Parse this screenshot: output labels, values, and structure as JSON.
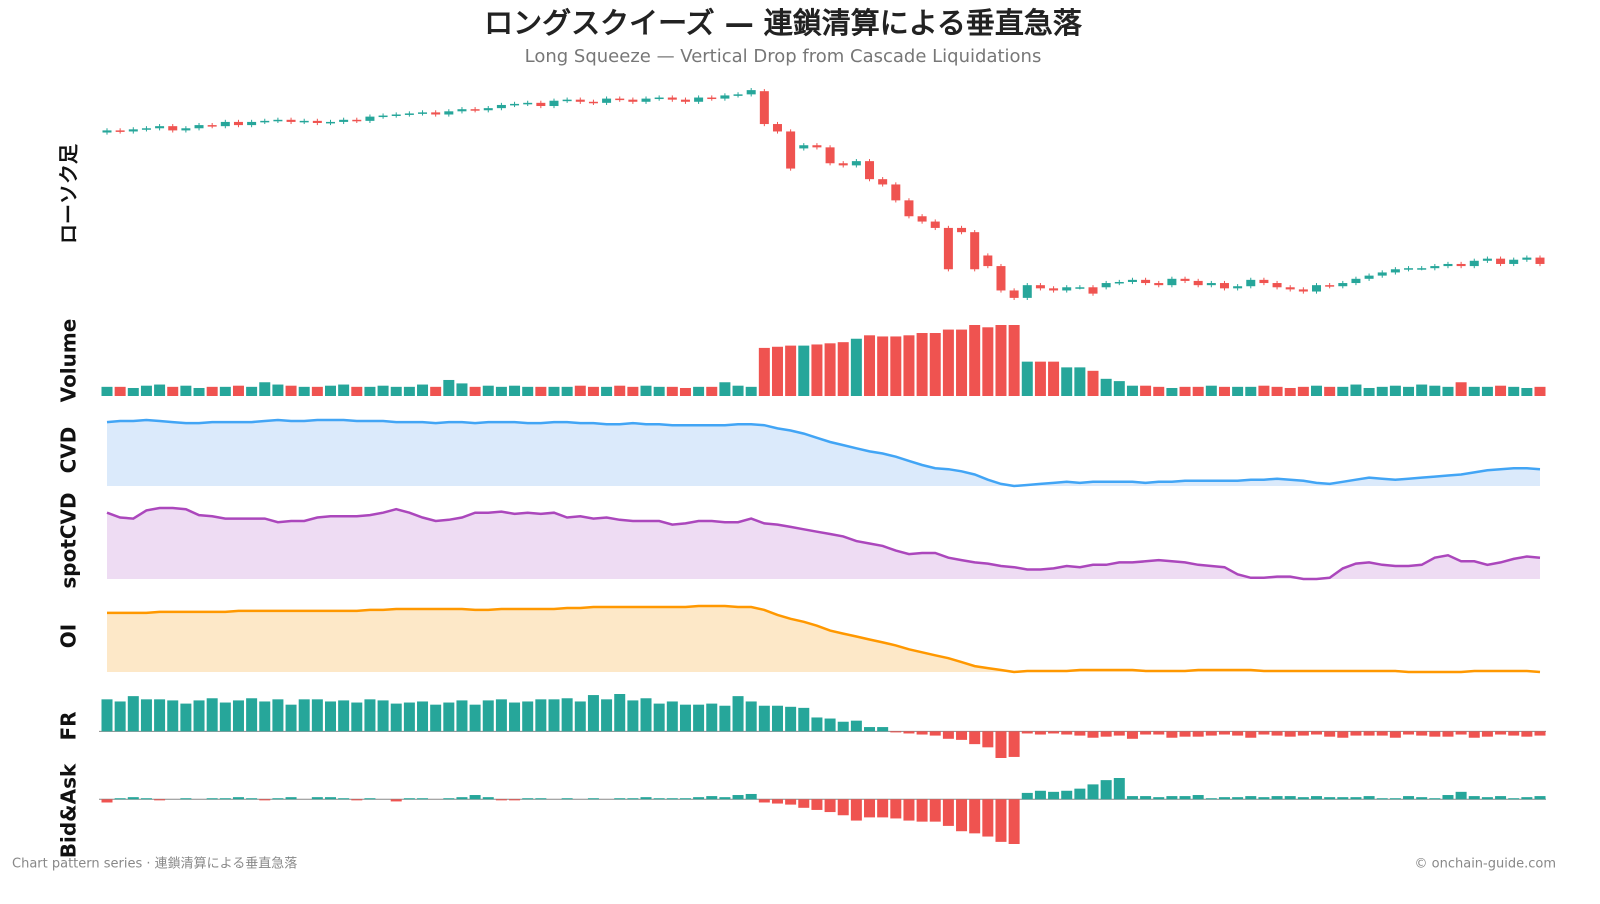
{
  "header": {
    "title": "ロングスクイーズ — 連鎖清算による垂直急落",
    "subtitle": "Long Squeeze — Vertical Drop from Cascade Liquidations"
  },
  "footer": {
    "left": "Chart pattern series · 連鎖清算による垂直急落",
    "right": "© onchain-guide.com"
  },
  "chart_data": [
    {
      "type": "candlestick",
      "ylabel": "ローソク足",
      "up_color": "#26a69a",
      "down_color": "#ef5350",
      "open": [
        164,
        166,
        165,
        167,
        168,
        170,
        166,
        168,
        171,
        170,
        174,
        171,
        174,
        175,
        176,
        174,
        175,
        173,
        174,
        176,
        175,
        179,
        180,
        181,
        182,
        183,
        181,
        184,
        186,
        185,
        187,
        190,
        191,
        192,
        189,
        194,
        195,
        193,
        192,
        196,
        195,
        193,
        196,
        197,
        195,
        193,
        197,
        196,
        199,
        200,
        203,
        172,
        165,
        149,
        152,
        150,
        135,
        133,
        137,
        120,
        115,
        100,
        85,
        80,
        74,
        74,
        70,
        48,
        38,
        15,
        8,
        20,
        17,
        15,
        18,
        18,
        18,
        22,
        23,
        25,
        22,
        20,
        26,
        24,
        20,
        22,
        17,
        19,
        25,
        22,
        18,
        16,
        14,
        20,
        19,
        22,
        26,
        29,
        32,
        35,
        36,
        36,
        38,
        40,
        38,
        43,
        45,
        40,
        44,
        46
      ],
      "high": [
        168,
        168,
        169,
        170,
        172,
        172,
        170,
        173,
        173,
        176,
        176,
        176,
        177,
        178,
        178,
        177,
        177,
        176,
        178,
        178,
        181,
        182,
        183,
        184,
        185,
        185,
        186,
        188,
        188,
        189,
        192,
        193,
        194,
        194,
        196,
        197,
        197,
        195,
        198,
        198,
        197,
        198,
        199,
        199,
        197,
        199,
        199,
        201,
        202,
        206,
        205,
        174,
        167,
        154,
        154,
        152,
        137,
        139,
        139,
        122,
        117,
        102,
        87,
        82,
        76,
        76,
        72,
        50,
        40,
        17,
        22,
        22,
        19,
        20,
        20,
        20,
        24,
        25,
        27,
        27,
        24,
        28,
        28,
        26,
        24,
        24,
        21,
        27,
        27,
        24,
        20,
        18,
        22,
        22,
        24,
        28,
        31,
        34,
        37,
        38,
        38,
        40,
        42,
        42,
        45,
        47,
        47,
        46,
        48,
        48
      ],
      "low": [
        162,
        163,
        163,
        165,
        166,
        164,
        164,
        166,
        168,
        168,
        169,
        169,
        172,
        173,
        172,
        172,
        171,
        171,
        172,
        173,
        173,
        177,
        178,
        179,
        180,
        179,
        179,
        182,
        183,
        183,
        185,
        188,
        189,
        187,
        187,
        192,
        191,
        190,
        190,
        193,
        191,
        191,
        194,
        193,
        191,
        191,
        194,
        194,
        197,
        198,
        170,
        163,
        128,
        147,
        148,
        133,
        131,
        131,
        118,
        113,
        98,
        83,
        78,
        72,
        33,
        68,
        33,
        36,
        13,
        6,
        6,
        15,
        13,
        13,
        16,
        10,
        16,
        20,
        21,
        20,
        18,
        18,
        22,
        18,
        18,
        15,
        15,
        17,
        20,
        16,
        14,
        12,
        12,
        17,
        17,
        20,
        24,
        27,
        30,
        33,
        34,
        34,
        36,
        36,
        36,
        41,
        38,
        38,
        42,
        38
      ],
      "close": [
        166,
        165,
        167,
        168,
        170,
        166,
        168,
        171,
        170,
        174,
        171,
        174,
        175,
        176,
        174,
        175,
        173,
        174,
        176,
        175,
        179,
        180,
        181,
        182,
        183,
        181,
        184,
        186,
        185,
        187,
        190,
        191,
        192,
        189,
        194,
        195,
        193,
        192,
        196,
        195,
        193,
        196,
        197,
        195,
        193,
        197,
        196,
        199,
        200,
        204,
        172,
        165,
        130,
        152,
        150,
        135,
        133,
        137,
        120,
        115,
        100,
        85,
        80,
        74,
        35,
        70,
        35,
        38,
        15,
        8,
        20,
        17,
        15,
        18,
        18,
        12,
        22,
        23,
        25,
        22,
        20,
        26,
        24,
        20,
        22,
        17,
        19,
        25,
        22,
        18,
        16,
        14,
        20,
        19,
        22,
        26,
        29,
        32,
        35,
        36,
        36,
        38,
        40,
        38,
        43,
        45,
        40,
        44,
        46,
        40
      ]
    },
    {
      "type": "bar",
      "ylabel": "Volume",
      "up_color": "#26a69a",
      "down_color": "#ef5350",
      "values": [
        8,
        8,
        7,
        9,
        10,
        8,
        9,
        7,
        8,
        8,
        9,
        8,
        12,
        10,
        9,
        8,
        8,
        9,
        10,
        8,
        8,
        9,
        8,
        8,
        10,
        8,
        14,
        11,
        8,
        9,
        8,
        9,
        8,
        8,
        8,
        8,
        9,
        8,
        8,
        9,
        8,
        9,
        8,
        8,
        7,
        8,
        8,
        12,
        9,
        8,
        42,
        43,
        44,
        44,
        45,
        46,
        47,
        50,
        53,
        52,
        52,
        53,
        55,
        55,
        58,
        58,
        62,
        60,
        62,
        62,
        30,
        30,
        30,
        25,
        25,
        22,
        15,
        13,
        9,
        9,
        8,
        7,
        8,
        8,
        9,
        8,
        8,
        8,
        9,
        8,
        7,
        8,
        9,
        8,
        8,
        10,
        7,
        8,
        9,
        8,
        10,
        9,
        8,
        12,
        8,
        8,
        9,
        8,
        7,
        8
      ]
    },
    {
      "type": "area",
      "ylabel": "CVD",
      "color": "#42a5f5",
      "fill": "#dbeafb",
      "values": [
        62,
        63,
        63,
        64,
        63,
        62,
        61,
        61,
        62,
        62,
        62,
        62,
        63,
        64,
        63,
        63,
        64,
        64,
        64,
        63,
        63,
        63,
        62,
        62,
        62,
        61,
        62,
        62,
        61,
        62,
        62,
        62,
        61,
        61,
        62,
        62,
        61,
        61,
        60,
        60,
        61,
        60,
        60,
        59,
        59,
        59,
        59,
        59,
        60,
        60,
        59,
        56,
        54,
        51,
        47,
        43,
        40,
        37,
        34,
        32,
        29,
        25,
        21,
        18,
        17,
        15,
        12,
        7,
        3,
        1,
        2,
        3,
        4,
        5,
        4,
        5,
        5,
        5,
        5,
        4,
        5,
        5,
        6,
        6,
        6,
        6,
        6,
        7,
        7,
        8,
        7,
        6,
        4,
        3,
        5,
        7,
        9,
        8,
        7,
        8,
        9,
        10,
        11,
        12,
        14,
        16,
        17,
        18,
        18,
        17
      ]
    },
    {
      "type": "area",
      "ylabel": "spotCVD",
      "color": "#ab47bc",
      "fill": "#eedcf3",
      "values": [
        62,
        58,
        57,
        64,
        66,
        66,
        65,
        60,
        59,
        57,
        57,
        57,
        57,
        54,
        55,
        55,
        58,
        59,
        59,
        59,
        60,
        62,
        65,
        62,
        58,
        55,
        56,
        58,
        62,
        62,
        63,
        61,
        62,
        61,
        62,
        58,
        59,
        57,
        58,
        56,
        55,
        55,
        55,
        52,
        53,
        55,
        55,
        54,
        54,
        57,
        53,
        52,
        50,
        48,
        46,
        44,
        42,
        38,
        36,
        34,
        30,
        27,
        28,
        28,
        24,
        22,
        20,
        19,
        17,
        16,
        14,
        14,
        15,
        17,
        16,
        18,
        18,
        20,
        20,
        21,
        22,
        21,
        20,
        18,
        17,
        16,
        10,
        7,
        7,
        8,
        8,
        6,
        6,
        7,
        15,
        19,
        20,
        18,
        17,
        17,
        18,
        24,
        26,
        21,
        21,
        18,
        20,
        23,
        25,
        24
      ]
    },
    {
      "type": "area",
      "ylabel": "OI",
      "color": "#ff9800",
      "fill": "#fde8c8",
      "values": [
        60,
        60,
        60,
        60,
        61,
        61,
        61,
        61,
        61,
        61,
        62,
        62,
        62,
        62,
        62,
        62,
        62,
        62,
        62,
        62,
        63,
        63,
        64,
        64,
        64,
        64,
        64,
        64,
        63,
        63,
        64,
        64,
        64,
        64,
        64,
        65,
        65,
        66,
        66,
        66,
        66,
        66,
        66,
        66,
        66,
        67,
        67,
        67,
        66,
        66,
        63,
        58,
        54,
        51,
        47,
        42,
        39,
        36,
        33,
        30,
        27,
        23,
        20,
        17,
        14,
        10,
        6,
        4,
        2,
        0,
        1,
        1,
        1,
        1,
        2,
        2,
        2,
        2,
        2,
        1,
        1,
        1,
        1,
        2,
        2,
        2,
        2,
        2,
        1,
        1,
        1,
        1,
        1,
        1,
        1,
        1,
        1,
        1,
        1,
        0,
        0,
        0,
        0,
        0,
        1,
        1,
        1,
        1,
        1,
        0
      ]
    },
    {
      "type": "bar",
      "ylabel": "FR",
      "up_color": "#26a69a",
      "down_color": "#ef5350",
      "values": [
        30,
        28,
        33,
        30,
        30,
        29,
        26,
        29,
        31,
        27,
        29,
        31,
        28,
        30,
        25,
        30,
        30,
        28,
        29,
        27,
        30,
        29,
        26,
        27,
        28,
        25,
        27,
        29,
        25,
        29,
        30,
        27,
        28,
        30,
        30,
        31,
        28,
        34,
        30,
        35,
        29,
        31,
        26,
        28,
        25,
        25,
        26,
        24,
        33,
        28,
        24,
        24,
        23,
        22,
        13,
        12,
        9,
        10,
        4,
        4,
        -1,
        -2,
        -3,
        -4,
        -7,
        -8,
        -12,
        -15,
        -25,
        -24,
        -2,
        -3,
        -2,
        -3,
        -4,
        -6,
        -5,
        -4,
        -7,
        -3,
        -3,
        -6,
        -5,
        -5,
        -4,
        -3,
        -4,
        -6,
        -3,
        -4,
        -5,
        -4,
        -3,
        -5,
        -6,
        -4,
        -4,
        -4,
        -6,
        -3,
        -4,
        -5,
        -5,
        -3,
        -6,
        -5,
        -3,
        -4,
        -5,
        -4
      ]
    },
    {
      "type": "bar",
      "ylabel": "Bid&Ask",
      "up_color": "#26a69a",
      "down_color": "#ef5350",
      "values": [
        -3,
        1,
        2,
        1,
        -1,
        0,
        1,
        0,
        1,
        1,
        2,
        1,
        -1,
        1,
        2,
        0,
        2,
        2,
        1,
        -1,
        1,
        0,
        -2,
        1,
        1,
        0,
        1,
        2,
        4,
        2,
        -1,
        -1,
        1,
        1,
        0,
        1,
        0,
        1,
        0,
        1,
        1,
        2,
        1,
        1,
        1,
        2,
        3,
        2,
        4,
        5,
        -3,
        -4,
        -5,
        -8,
        -10,
        -12,
        -15,
        -20,
        -17,
        -17,
        -18,
        -20,
        -21,
        -21,
        -25,
        -30,
        -32,
        -35,
        -40,
        -42,
        6,
        8,
        7,
        8,
        10,
        14,
        18,
        20,
        3,
        3,
        2,
        3,
        3,
        4,
        1,
        2,
        2,
        3,
        2,
        3,
        3,
        2,
        3,
        2,
        2,
        2,
        3,
        1,
        1,
        3,
        2,
        1,
        4,
        7,
        3,
        2,
        3,
        1,
        2,
        3
      ]
    }
  ]
}
